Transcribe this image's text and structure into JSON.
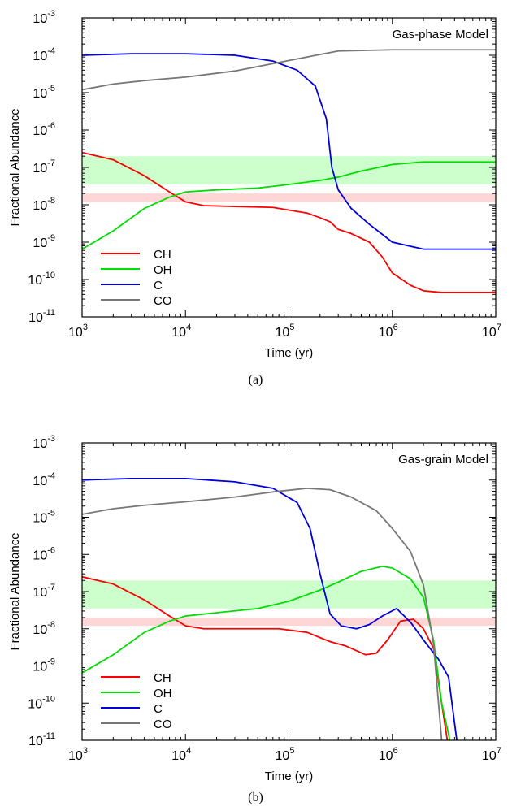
{
  "chart_data": [
    {
      "type": "line",
      "panel_label": "Gas-phase Model",
      "caption": "(a)",
      "xlabel": "Time (yr)",
      "ylabel": "Fractional Abundance",
      "xscale": "log",
      "yscale": "log",
      "xlim": [
        1000,
        10000000
      ],
      "ylim": [
        1e-11,
        0.001
      ],
      "x_ticks": [
        {
          "base": "10",
          "exp": "3"
        },
        {
          "base": "10",
          "exp": "4"
        },
        {
          "base": "10",
          "exp": "5"
        },
        {
          "base": "10",
          "exp": "6"
        },
        {
          "base": "10",
          "exp": "7"
        }
      ],
      "y_ticks": [
        {
          "base": "10",
          "exp": "-11"
        },
        {
          "base": "10",
          "exp": "-10"
        },
        {
          "base": "10",
          "exp": "-9"
        },
        {
          "base": "10",
          "exp": "-8"
        },
        {
          "base": "10",
          "exp": "-7"
        },
        {
          "base": "10",
          "exp": "-6"
        },
        {
          "base": "10",
          "exp": "-5"
        },
        {
          "base": "10",
          "exp": "-4"
        },
        {
          "base": "10",
          "exp": "-3"
        }
      ],
      "legend_position": "bottom-left",
      "bands": [
        {
          "species": "OH",
          "range": [
            3.5e-08,
            2e-07
          ],
          "color": "#ccffcc"
        },
        {
          "species": "CH",
          "range": [
            1.2e-08,
            2e-08
          ],
          "color": "#ffd6d6"
        }
      ],
      "series": [
        {
          "name": "CH",
          "color": "#ff0000",
          "points": [
            [
              1000,
              2.5e-07
            ],
            [
              2000,
              1.6e-07
            ],
            [
              4000,
              6e-08
            ],
            [
              7000,
              2.2e-08
            ],
            [
              10000,
              1.2e-08
            ],
            [
              15000,
              9.5e-09
            ],
            [
              30000,
              9e-09
            ],
            [
              70000,
              8.5e-09
            ],
            [
              150000,
              6e-09
            ],
            [
              200000,
              4.5e-09
            ],
            [
              250000,
              3.5e-09
            ],
            [
              300000,
              2.2e-09
            ],
            [
              400000,
              1.7e-09
            ],
            [
              600000,
              1e-09
            ],
            [
              800000,
              4e-10
            ],
            [
              1000000,
              1.5e-10
            ],
            [
              1500000,
              7e-11
            ],
            [
              2000000,
              5e-11
            ],
            [
              3000000,
              4.5e-11
            ],
            [
              10000000,
              4.5e-11
            ]
          ]
        },
        {
          "name": "OH",
          "color": "#00dd00",
          "points": [
            [
              1000,
              6.5e-10
            ],
            [
              2000,
              2e-09
            ],
            [
              4000,
              8e-09
            ],
            [
              7000,
              1.6e-08
            ],
            [
              10000,
              2.2e-08
            ],
            [
              20000,
              2.5e-08
            ],
            [
              50000,
              2.8e-08
            ],
            [
              100000,
              3.5e-08
            ],
            [
              200000,
              4.5e-08
            ],
            [
              300000,
              5.5e-08
            ],
            [
              500000,
              8e-08
            ],
            [
              1000000,
              1.2e-07
            ],
            [
              2000000,
              1.4e-07
            ],
            [
              3000000,
              1.4e-07
            ],
            [
              10000000,
              1.4e-07
            ]
          ]
        },
        {
          "name": "C",
          "color": "#0000dd",
          "points": [
            [
              1000,
              0.0001
            ],
            [
              3000,
              0.00011
            ],
            [
              10000,
              0.00011
            ],
            [
              30000,
              0.0001
            ],
            [
              70000,
              7e-05
            ],
            [
              120000,
              4e-05
            ],
            [
              180000,
              1.5e-05
            ],
            [
              230000,
              2e-06
            ],
            [
              260000,
              1e-07
            ],
            [
              300000,
              2.5e-08
            ],
            [
              400000,
              8e-09
            ],
            [
              600000,
              3e-09
            ],
            [
              1000000,
              1e-09
            ],
            [
              2000000,
              6.5e-10
            ],
            [
              10000000,
              6.5e-10
            ]
          ]
        },
        {
          "name": "CO",
          "color": "#777777",
          "points": [
            [
              1000,
              1.2e-05
            ],
            [
              2000,
              1.7e-05
            ],
            [
              4000,
              2.1e-05
            ],
            [
              10000,
              2.6e-05
            ],
            [
              30000,
              3.8e-05
            ],
            [
              70000,
              6e-05
            ],
            [
              150000,
              9e-05
            ],
            [
              300000,
              0.00013
            ],
            [
              1000000,
              0.00014
            ],
            [
              10000000,
              0.00014
            ]
          ]
        }
      ]
    },
    {
      "type": "line",
      "panel_label": "Gas-grain Model",
      "caption": "(b)",
      "xlabel": "Time (yr)",
      "ylabel": "Fractional Abundance",
      "xscale": "log",
      "yscale": "log",
      "xlim": [
        1000,
        10000000
      ],
      "ylim": [
        1e-11,
        0.001
      ],
      "x_ticks": [
        {
          "base": "10",
          "exp": "3"
        },
        {
          "base": "10",
          "exp": "4"
        },
        {
          "base": "10",
          "exp": "5"
        },
        {
          "base": "10",
          "exp": "6"
        },
        {
          "base": "10",
          "exp": "7"
        }
      ],
      "y_ticks": [
        {
          "base": "10",
          "exp": "-11"
        },
        {
          "base": "10",
          "exp": "-10"
        },
        {
          "base": "10",
          "exp": "-9"
        },
        {
          "base": "10",
          "exp": "-8"
        },
        {
          "base": "10",
          "exp": "-7"
        },
        {
          "base": "10",
          "exp": "-6"
        },
        {
          "base": "10",
          "exp": "-5"
        },
        {
          "base": "10",
          "exp": "-4"
        },
        {
          "base": "10",
          "exp": "-3"
        }
      ],
      "legend_position": "bottom-left",
      "bands": [
        {
          "species": "OH",
          "range": [
            3.5e-08,
            2e-07
          ],
          "color": "#ccffcc"
        },
        {
          "species": "CH",
          "range": [
            1.2e-08,
            2e-08
          ],
          "color": "#ffd6d6"
        }
      ],
      "series": [
        {
          "name": "CH",
          "color": "#ff0000",
          "points": [
            [
              1000,
              2.5e-07
            ],
            [
              2000,
              1.6e-07
            ],
            [
              4000,
              6e-08
            ],
            [
              7000,
              2.2e-08
            ],
            [
              10000,
              1.2e-08
            ],
            [
              15000,
              1e-08
            ],
            [
              30000,
              1e-08
            ],
            [
              80000,
              1e-08
            ],
            [
              150000,
              8e-09
            ],
            [
              250000,
              4.5e-09
            ],
            [
              350000,
              3.5e-09
            ],
            [
              550000,
              2e-09
            ],
            [
              700000,
              2.2e-09
            ],
            [
              900000,
              5e-09
            ],
            [
              1200000,
              1.6e-08
            ],
            [
              1600000,
              1.8e-08
            ],
            [
              2000000,
              1e-08
            ],
            [
              2500000,
              3e-09
            ],
            [
              3000000,
              1e-10
            ],
            [
              3400000,
              1e-11
            ]
          ]
        },
        {
          "name": "OH",
          "color": "#00dd00",
          "points": [
            [
              1000,
              6.5e-10
            ],
            [
              2000,
              2e-09
            ],
            [
              4000,
              8e-09
            ],
            [
              7000,
              1.6e-08
            ],
            [
              10000,
              2.2e-08
            ],
            [
              20000,
              2.7e-08
            ],
            [
              50000,
              3.5e-08
            ],
            [
              100000,
              5.5e-08
            ],
            [
              200000,
              1.1e-07
            ],
            [
              300000,
              1.8e-07
            ],
            [
              500000,
              3.5e-07
            ],
            [
              800000,
              4.8e-07
            ],
            [
              1000000,
              4.3e-07
            ],
            [
              1500000,
              2.2e-07
            ],
            [
              2000000,
              7e-08
            ],
            [
              2500000,
              5e-09
            ],
            [
              3000000,
              1e-10
            ],
            [
              3600000,
              1e-11
            ]
          ]
        },
        {
          "name": "C",
          "color": "#0000dd",
          "points": [
            [
              1000,
              0.0001
            ],
            [
              3000,
              0.00011
            ],
            [
              10000,
              0.00011
            ],
            [
              30000,
              9e-05
            ],
            [
              70000,
              6e-05
            ],
            [
              120000,
              2.5e-05
            ],
            [
              160000,
              5e-06
            ],
            [
              200000,
              3e-07
            ],
            [
              250000,
              2.5e-08
            ],
            [
              320000,
              1.2e-08
            ],
            [
              450000,
              1e-08
            ],
            [
              600000,
              1.3e-08
            ],
            [
              800000,
              2.2e-08
            ],
            [
              1100000,
              3.5e-08
            ],
            [
              1500000,
              1.5e-08
            ],
            [
              2000000,
              5e-09
            ],
            [
              2800000,
              1.5e-09
            ],
            [
              3500000,
              5e-10
            ],
            [
              4200000,
              1e-11
            ]
          ]
        },
        {
          "name": "CO",
          "color": "#777777",
          "points": [
            [
              1000,
              1.2e-05
            ],
            [
              2000,
              1.7e-05
            ],
            [
              4000,
              2.1e-05
            ],
            [
              10000,
              2.6e-05
            ],
            [
              30000,
              3.5e-05
            ],
            [
              70000,
              4.8e-05
            ],
            [
              150000,
              6e-05
            ],
            [
              250000,
              5.5e-05
            ],
            [
              400000,
              3.5e-05
            ],
            [
              700000,
              1.5e-05
            ],
            [
              1000000,
              5e-06
            ],
            [
              1500000,
              1.2e-06
            ],
            [
              2000000,
              1.5e-07
            ],
            [
              2500000,
              4e-09
            ],
            [
              3000000,
              1e-11
            ]
          ]
        }
      ]
    }
  ]
}
